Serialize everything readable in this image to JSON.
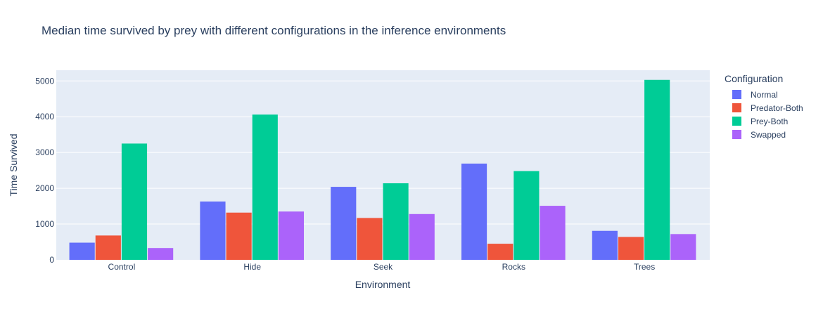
{
  "chart_data": {
    "type": "bar",
    "title": "Median time survived by prey with different configurations in the inference environments",
    "xlabel": "Environment",
    "ylabel": "Time Survived",
    "categories": [
      "Control",
      "Hide",
      "Seek",
      "Rocks",
      "Trees"
    ],
    "ylim": [
      0,
      5300
    ],
    "yticks": [
      0,
      1000,
      2000,
      3000,
      4000,
      5000
    ],
    "grid": true,
    "legend_title": "Configuration",
    "legend_position": "right",
    "series": [
      {
        "name": "Normal",
        "color": "#636efa",
        "values": [
          480,
          1630,
          2040,
          2690,
          810
        ]
      },
      {
        "name": "Predator-Both",
        "color": "#ef553b",
        "values": [
          680,
          1320,
          1170,
          450,
          640
        ]
      },
      {
        "name": "Prey-Both",
        "color": "#00cc96",
        "values": [
          3250,
          4060,
          2140,
          2480,
          5030
        ]
      },
      {
        "name": "Swapped",
        "color": "#ab63fa",
        "values": [
          330,
          1350,
          1280,
          1510,
          720
        ]
      }
    ]
  }
}
